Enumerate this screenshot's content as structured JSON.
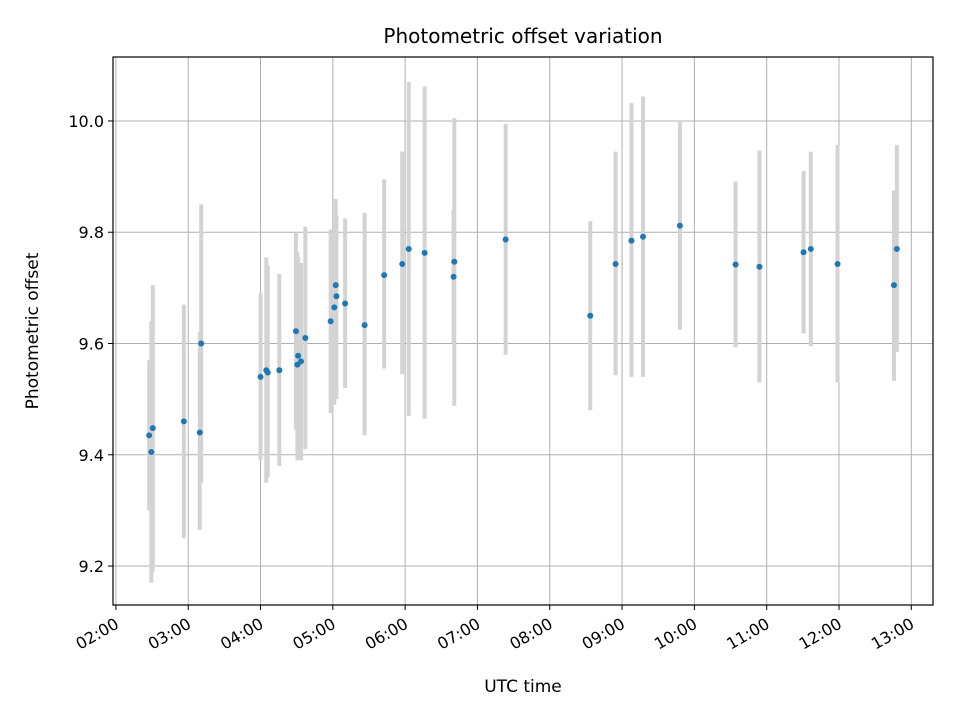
{
  "chart_data": {
    "type": "scatter",
    "title": "Photometric offset variation",
    "xlabel": "UTC time",
    "ylabel": "Photometric offset",
    "x_tick_values": [
      2,
      3,
      4,
      5,
      6,
      7,
      8,
      9,
      10,
      11,
      12,
      13
    ],
    "x_tick_labels": [
      "02:00",
      "03:00",
      "04:00",
      "05:00",
      "06:00",
      "07:00",
      "08:00",
      "09:00",
      "10:00",
      "11:00",
      "12:00",
      "13:00"
    ],
    "y_tick_values": [
      9.2,
      9.4,
      9.6,
      9.8,
      10.0
    ],
    "y_tick_labels": [
      "9.2",
      "9.4",
      "9.6",
      "9.8",
      "10.0"
    ],
    "xlim": [
      1.96,
      13.3
    ],
    "ylim": [
      9.13,
      10.115
    ],
    "grid": true,
    "x_unit": "hours UTC",
    "marker_color": "#1f77b4",
    "errorbar_color": "#d3d3d3",
    "points": [
      {
        "x": 2.46,
        "y": 9.435,
        "ylo": 9.3,
        "yhi": 9.57
      },
      {
        "x": 2.49,
        "y": 9.405,
        "ylo": 9.17,
        "yhi": 9.64
      },
      {
        "x": 2.51,
        "y": 9.448,
        "ylo": 9.19,
        "yhi": 9.705
      },
      {
        "x": 2.94,
        "y": 9.46,
        "ylo": 9.25,
        "yhi": 9.67
      },
      {
        "x": 3.16,
        "y": 9.44,
        "ylo": 9.265,
        "yhi": 9.62
      },
      {
        "x": 3.18,
        "y": 9.6,
        "ylo": 9.35,
        "yhi": 9.85
      },
      {
        "x": 4.0,
        "y": 9.54,
        "ylo": 9.39,
        "yhi": 9.69
      },
      {
        "x": 4.08,
        "y": 9.552,
        "ylo": 9.35,
        "yhi": 9.755
      },
      {
        "x": 4.1,
        "y": 9.548,
        "ylo": 9.36,
        "yhi": 9.74
      },
      {
        "x": 4.26,
        "y": 9.552,
        "ylo": 9.38,
        "yhi": 9.725
      },
      {
        "x": 4.49,
        "y": 9.622,
        "ylo": 9.445,
        "yhi": 9.8
      },
      {
        "x": 4.51,
        "y": 9.562,
        "ylo": 9.39,
        "yhi": 9.765
      },
      {
        "x": 4.52,
        "y": 9.578,
        "ylo": 9.4,
        "yhi": 9.755
      },
      {
        "x": 4.56,
        "y": 9.568,
        "ylo": 9.39,
        "yhi": 9.745
      },
      {
        "x": 4.62,
        "y": 9.61,
        "ylo": 9.41,
        "yhi": 9.81
      },
      {
        "x": 4.97,
        "y": 9.64,
        "ylo": 9.475,
        "yhi": 9.805
      },
      {
        "x": 5.02,
        "y": 9.665,
        "ylo": 9.49,
        "yhi": 9.8
      },
      {
        "x": 5.04,
        "y": 9.705,
        "ylo": 9.55,
        "yhi": 9.86
      },
      {
        "x": 5.05,
        "y": 9.685,
        "ylo": 9.5,
        "yhi": 9.83
      },
      {
        "x": 5.17,
        "y": 9.672,
        "ylo": 9.52,
        "yhi": 9.825
      },
      {
        "x": 5.44,
        "y": 9.633,
        "ylo": 9.435,
        "yhi": 9.835
      },
      {
        "x": 5.71,
        "y": 9.723,
        "ylo": 9.555,
        "yhi": 9.895
      },
      {
        "x": 5.96,
        "y": 9.743,
        "ylo": 9.545,
        "yhi": 9.945
      },
      {
        "x": 6.05,
        "y": 9.77,
        "ylo": 9.47,
        "yhi": 10.07
      },
      {
        "x": 6.27,
        "y": 9.763,
        "ylo": 9.465,
        "yhi": 10.062
      },
      {
        "x": 6.67,
        "y": 9.72,
        "ylo": 9.6,
        "yhi": 9.84
      },
      {
        "x": 6.68,
        "y": 9.747,
        "ylo": 9.488,
        "yhi": 10.005
      },
      {
        "x": 7.39,
        "y": 9.787,
        "ylo": 9.58,
        "yhi": 9.995
      },
      {
        "x": 8.56,
        "y": 9.65,
        "ylo": 9.48,
        "yhi": 9.82
      },
      {
        "x": 8.91,
        "y": 9.743,
        "ylo": 9.543,
        "yhi": 9.945
      },
      {
        "x": 9.13,
        "y": 9.785,
        "ylo": 9.54,
        "yhi": 10.032
      },
      {
        "x": 9.29,
        "y": 9.792,
        "ylo": 9.54,
        "yhi": 10.044
      },
      {
        "x": 9.8,
        "y": 9.812,
        "ylo": 9.625,
        "yhi": 9.998
      },
      {
        "x": 10.57,
        "y": 9.742,
        "ylo": 9.593,
        "yhi": 9.891
      },
      {
        "x": 10.9,
        "y": 9.738,
        "ylo": 9.53,
        "yhi": 9.947
      },
      {
        "x": 11.51,
        "y": 9.764,
        "ylo": 9.618,
        "yhi": 9.91
      },
      {
        "x": 11.61,
        "y": 9.77,
        "ylo": 9.595,
        "yhi": 9.945
      },
      {
        "x": 11.98,
        "y": 9.743,
        "ylo": 9.53,
        "yhi": 9.957
      },
      {
        "x": 12.76,
        "y": 9.705,
        "ylo": 9.533,
        "yhi": 9.875
      },
      {
        "x": 12.8,
        "y": 9.77,
        "ylo": 9.585,
        "yhi": 9.957
      }
    ]
  }
}
